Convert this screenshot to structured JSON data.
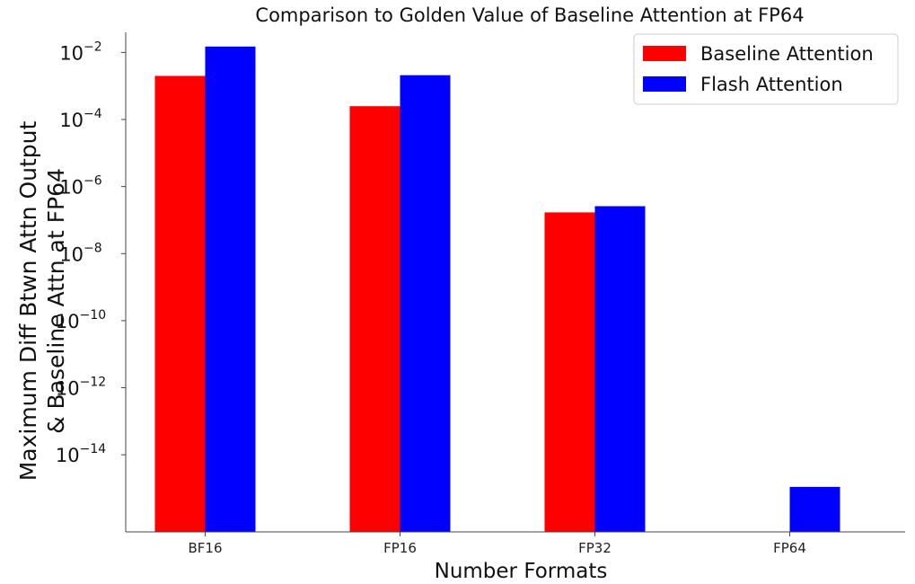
{
  "chart_data": {
    "type": "bar",
    "title": "Comparison to Golden Value of Baseline Attention at FP64",
    "xlabel": "Number Formats",
    "ylabel_lines": [
      "Maximum Diff Btwn Attn Output",
      "& Baseline Attn at FP64"
    ],
    "yscale": "log",
    "ylim_log10": [
      -16.3,
      -1.4
    ],
    "yticks": [
      {
        "base": "10",
        "exp": "−2",
        "log": -2
      },
      {
        "base": "10",
        "exp": "−4",
        "log": -4
      },
      {
        "base": "10",
        "exp": "−6",
        "log": -6
      },
      {
        "base": "10",
        "exp": "−8",
        "log": -8
      },
      {
        "base": "10",
        "exp": "−10",
        "log": -10
      },
      {
        "base": "10",
        "exp": "−12",
        "log": -12
      },
      {
        "base": "10",
        "exp": "−14",
        "log": -14
      }
    ],
    "categories": [
      "BF16",
      "FP16",
      "FP32",
      "FP64"
    ],
    "series": [
      {
        "name": "Baseline Attention",
        "color": "#ff0000",
        "values": [
          0.002,
          0.00025,
          1.7e-07,
          null
        ]
      },
      {
        "name": "Flash Attention",
        "color": "#0000ff",
        "values": [
          0.015,
          0.0021,
          2.6e-07,
          1.1e-15
        ]
      }
    ],
    "legend_position": "top-right"
  }
}
